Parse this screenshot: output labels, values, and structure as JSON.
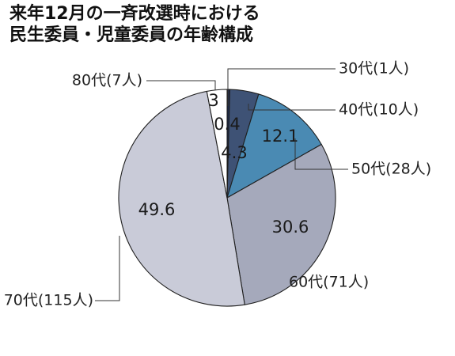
{
  "title_lines": [
    "来年12月の一斉改選時における",
    "民生委員・児童委員の年齢構成"
  ],
  "chart_data": {
    "type": "pie",
    "title": "来年12月の一斉改選時における民生委員・児童委員の年齢構成",
    "start_angle_deg": 0,
    "direction": "clockwise",
    "slices": [
      {
        "category": "30代(1人)",
        "value": 0.4,
        "value_label": "0.4",
        "color": "#1d2b4d"
      },
      {
        "category": "40代(10人)",
        "value": 4.3,
        "value_label": "4.3",
        "color": "#3e5275"
      },
      {
        "category": "50代(28人)",
        "value": 12.1,
        "value_label": "12.1",
        "color": "#4a8ab3"
      },
      {
        "category": "60代(71人)",
        "value": 30.6,
        "value_label": "30.6",
        "color": "#a5a9bb"
      },
      {
        "category": "70代(115人)",
        "value": 49.6,
        "value_label": "49.6",
        "color": "#c9cbd8"
      },
      {
        "category": "80代(7人)",
        "value": 3,
        "value_label": "3",
        "color": "#ffffff"
      }
    ]
  }
}
